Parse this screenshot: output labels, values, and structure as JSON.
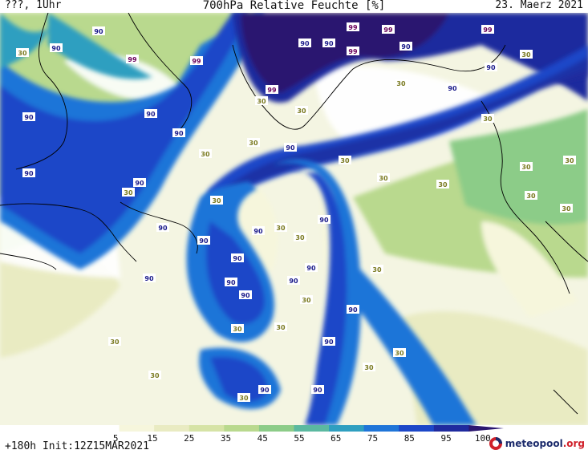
{
  "header": {
    "left": "???, 1Uhr",
    "title": "700hPa Relative Feuchte [%]",
    "right": "23. Maerz 2021"
  },
  "footer": {
    "run_info": "+180h Init:12Z15MAR2021",
    "logo_main": "meteopool",
    "logo_domain": ".org"
  },
  "legend": {
    "ticks": [
      "5",
      "15",
      "25",
      "35",
      "45",
      "55",
      "65",
      "75",
      "85",
      "95",
      "100"
    ],
    "colors": [
      "#ffffff",
      "#f6f6dc",
      "#e9ebc2",
      "#d6e3a6",
      "#b9d98e",
      "#8ccc88",
      "#5bb9a0",
      "#2f9fc0",
      "#1f75d8",
      "#1c47c8",
      "#1f2a9e",
      "#2a1670"
    ]
  },
  "contour_labels": {
    "values_shown": [
      "30",
      "90",
      "99"
    ],
    "colors": {
      "30": "#7a7a20",
      "90": "#1a1a8a",
      "99": "#6a005a"
    }
  },
  "colors": {
    "dry": "#ffffff",
    "very_moist": "#2a1670",
    "coastline": "#000000"
  }
}
